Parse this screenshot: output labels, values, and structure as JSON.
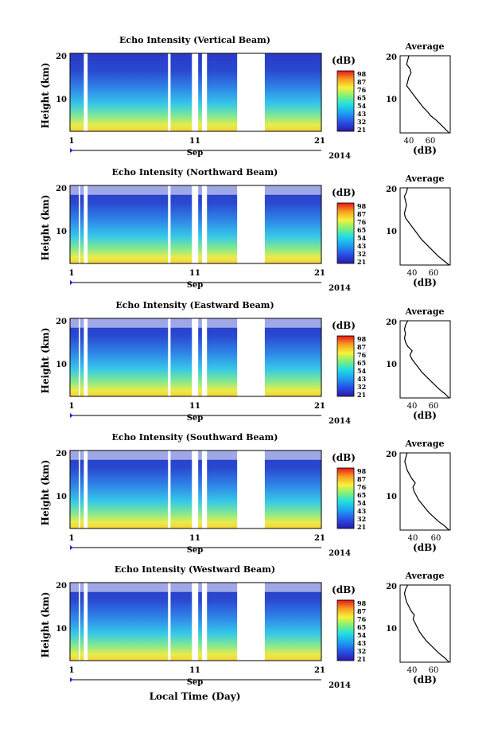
{
  "chart_data": [
    {
      "type": "heatmap",
      "title": "Echo Intensity (Vertical Beam)",
      "ylabel": "Height (km)",
      "y_ticks": [
        "20",
        "10"
      ],
      "x_ticks": [
        "1",
        "11",
        "21"
      ],
      "time_label": "Sep",
      "year_label": "2014",
      "xlim": [
        1,
        21
      ],
      "ylim": [
        2,
        20
      ],
      "colorbar": {
        "unit": "(dB)",
        "ticks": [
          "98",
          "87",
          "76",
          "65",
          "54",
          "43",
          "32",
          "21"
        ]
      },
      "data_gaps_days": [
        [
          2.1,
          2.4
        ],
        [
          8.8,
          9.0
        ],
        [
          10.7,
          11.2
        ],
        [
          11.5,
          11.9
        ],
        [
          14.3,
          16.5
        ]
      ],
      "average_profile": {
        "title": "Average",
        "xlabel": "(dB)",
        "x_ticks": [
          "40",
          "60"
        ],
        "y_ticks": [
          "20",
          "10"
        ],
        "xlim": [
          30,
          76
        ],
        "ylim": [
          2,
          20
        ],
        "height_km": [
          2,
          3,
          4,
          5,
          6,
          7,
          8,
          9,
          10,
          11,
          12,
          13,
          14,
          15,
          16,
          17,
          18,
          19,
          20
        ],
        "values_db": [
          75,
          71,
          67,
          63,
          58,
          55,
          51,
          48,
          45,
          42,
          39,
          36,
          37,
          38,
          40,
          39,
          36,
          37,
          38
        ]
      }
    },
    {
      "type": "heatmap",
      "title": "Echo Intensity (Northward Beam)",
      "ylabel": "Height (km)",
      "y_ticks": [
        "20",
        "10"
      ],
      "x_ticks": [
        "1",
        "11",
        "21"
      ],
      "time_label": "Sep",
      "year_label": "2014",
      "xlim": [
        1,
        21
      ],
      "ylim": [
        2,
        20
      ],
      "colorbar": {
        "unit": "(dB)",
        "ticks": [
          "98",
          "87",
          "76",
          "65",
          "54",
          "43",
          "32",
          "21"
        ]
      },
      "data_gaps_days": [
        [
          1.7,
          1.8
        ],
        [
          2.1,
          2.4
        ],
        [
          8.8,
          9.0
        ],
        [
          10.7,
          11.2
        ],
        [
          11.5,
          11.9
        ],
        [
          14.3,
          16.5
        ]
      ],
      "average_profile": {
        "title": "Average",
        "xlabel": "(dB)",
        "x_ticks": [
          "40",
          "60"
        ],
        "y_ticks": [
          "20",
          "10"
        ],
        "xlim": [
          25,
          72
        ],
        "ylim": [
          2,
          20
        ],
        "height_km": [
          2,
          3,
          4,
          5,
          6,
          7,
          8,
          9,
          10,
          11,
          12,
          13,
          14,
          15,
          16,
          17,
          18,
          19,
          20
        ],
        "values_db": [
          71,
          66,
          61,
          57,
          53,
          49,
          45,
          42,
          39,
          36,
          33,
          30,
          29,
          30,
          31,
          30,
          29,
          31,
          32
        ]
      }
    },
    {
      "type": "heatmap",
      "title": "Echo Intensity (Eastward Beam)",
      "ylabel": "Height (km)",
      "y_ticks": [
        "20",
        "10"
      ],
      "x_ticks": [
        "1",
        "11",
        "21"
      ],
      "time_label": "Sep",
      "year_label": "2014",
      "xlim": [
        1,
        21
      ],
      "ylim": [
        2,
        20
      ],
      "colorbar": {
        "unit": "(dB)",
        "ticks": [
          "98",
          "87",
          "76",
          "65",
          "54",
          "43",
          "32",
          "21"
        ]
      },
      "data_gaps_days": [
        [
          1.7,
          1.8
        ],
        [
          2.1,
          2.4
        ],
        [
          8.8,
          9.0
        ],
        [
          10.7,
          11.2
        ],
        [
          11.5,
          11.9
        ],
        [
          14.3,
          16.5
        ]
      ],
      "average_profile": {
        "title": "Average",
        "xlabel": "(dB)",
        "x_ticks": [
          "40",
          "60"
        ],
        "y_ticks": [
          "20",
          "10"
        ],
        "xlim": [
          26,
          72
        ],
        "ylim": [
          2,
          20
        ],
        "height_km": [
          2,
          3,
          4,
          5,
          6,
          7,
          8,
          9,
          10,
          11,
          12,
          13,
          14,
          15,
          16,
          17,
          18,
          19,
          20
        ],
        "values_db": [
          71,
          67,
          62,
          58,
          54,
          50,
          46,
          43,
          40,
          37,
          35,
          37,
          33,
          31,
          30,
          31,
          30,
          31,
          33
        ]
      }
    },
    {
      "type": "heatmap",
      "title": "Echo Intensity (Southward Beam)",
      "ylabel": "Height (km)",
      "y_ticks": [
        "20",
        "10"
      ],
      "x_ticks": [
        "1",
        "11",
        "21"
      ],
      "time_label": "Sep",
      "year_label": "2014",
      "xlim": [
        1,
        21
      ],
      "ylim": [
        2,
        20
      ],
      "colorbar": {
        "unit": "(dB)",
        "ticks": [
          "98",
          "87",
          "76",
          "65",
          "54",
          "43",
          "32",
          "21"
        ]
      },
      "data_gaps_days": [
        [
          1.7,
          1.8
        ],
        [
          2.1,
          2.4
        ],
        [
          8.8,
          9.0
        ],
        [
          10.7,
          11.2
        ],
        [
          11.5,
          11.9
        ],
        [
          14.3,
          16.5
        ]
      ],
      "average_profile": {
        "title": "Average",
        "xlabel": "(dB)",
        "x_ticks": [
          "40",
          "60"
        ],
        "y_ticks": [
          "20",
          "10"
        ],
        "xlim": [
          25,
          68
        ],
        "ylim": [
          2,
          20
        ],
        "height_km": [
          2,
          3,
          4,
          5,
          6,
          7,
          8,
          9,
          10,
          11,
          12,
          13,
          14,
          15,
          16,
          17,
          18,
          19,
          20
        ],
        "values_db": [
          67,
          63,
          58,
          54,
          50,
          47,
          44,
          41,
          39,
          37,
          36,
          38,
          35,
          33,
          31,
          30,
          29,
          30,
          31
        ]
      }
    },
    {
      "type": "heatmap",
      "title": "Echo Intensity (Westward Beam)",
      "ylabel": "Height (km)",
      "y_ticks": [
        "20",
        "10"
      ],
      "x_ticks": [
        "1",
        "11",
        "21"
      ],
      "time_label": "Sep",
      "year_label": "2014",
      "xlabel": "Local Time (Day)",
      "xlim": [
        1,
        21
      ],
      "ylim": [
        2,
        20
      ],
      "colorbar": {
        "unit": "(dB)",
        "ticks": [
          "98",
          "87",
          "76",
          "65",
          "54",
          "43",
          "32",
          "21"
        ]
      },
      "data_gaps_days": [
        [
          1.7,
          1.8
        ],
        [
          2.1,
          2.4
        ],
        [
          8.8,
          9.0
        ],
        [
          10.7,
          11.2
        ],
        [
          11.5,
          11.9
        ],
        [
          14.3,
          16.5
        ]
      ],
      "average_profile": {
        "title": "Average",
        "xlabel": "(dB)",
        "x_ticks": [
          "40",
          "60"
        ],
        "y_ticks": [
          "20",
          "10"
        ],
        "xlim": [
          26,
          72
        ],
        "ylim": [
          2,
          20
        ],
        "height_km": [
          2,
          3,
          4,
          5,
          6,
          7,
          8,
          9,
          10,
          11,
          12,
          13,
          14,
          15,
          16,
          17,
          18,
          19,
          20
        ],
        "values_db": [
          71,
          67,
          62,
          58,
          54,
          50,
          47,
          44,
          42,
          40,
          38,
          39,
          36,
          34,
          32,
          31,
          30,
          31,
          33
        ]
      }
    }
  ]
}
